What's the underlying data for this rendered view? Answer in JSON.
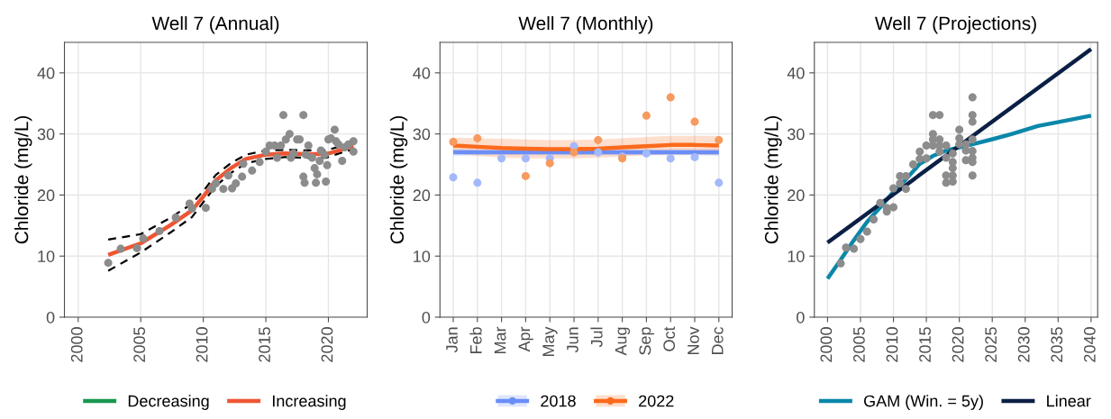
{
  "chart_data": [
    {
      "type": "line",
      "title": "Well 7 (Annual)",
      "ylabel": "Chloride (mg/L)",
      "xlim": [
        1998.9,
        2023.1
      ],
      "ylim": [
        0,
        45
      ],
      "xticks": [
        2000,
        2005,
        2010,
        2015,
        2020
      ],
      "yticks": [
        0,
        10,
        20,
        30,
        40
      ],
      "grid": true,
      "legend": "bottom",
      "series": [
        {
          "type": "scatter",
          "marker": "circle",
          "color": "#8c8c8c",
          "x": [
            2002.4,
            2003.4,
            2004.7,
            2005.2,
            2006.5,
            2007.8,
            2008.9,
            2009.1,
            2010.2,
            2010.7,
            2011.0,
            2011.6,
            2012.0,
            2012.3,
            2012.6,
            2013.1,
            2013.2,
            2013.9,
            2014.5,
            2015.0,
            2015.3,
            2015.7,
            2015.9,
            2016.2,
            2016.4,
            2016.6,
            2016.9,
            2017.0,
            2017.2,
            2017.5,
            2017.7,
            2018.0,
            2018.0,
            2018.1,
            2018.2,
            2018.4,
            2018.7,
            2018.9,
            2019.0,
            2019.1,
            2019.3,
            2019.4,
            2019.7,
            2019.8,
            2019.9,
            2020.0,
            2020.2,
            2020.5,
            2020.6,
            2020.8,
            2021.1,
            2021.3,
            2021.6,
            2022.0,
            2022.0
          ],
          "values": [
            8.9,
            11.2,
            11.3,
            12.9,
            14.1,
            16.3,
            18.6,
            17.8,
            17.9,
            21.0,
            21.9,
            21.0,
            23.2,
            21.1,
            21.9,
            23.0,
            25.1,
            24.0,
            25.4,
            27.1,
            28.1,
            28.1,
            26.1,
            28.1,
            33.1,
            29.1,
            30.0,
            26.1,
            26.8,
            29.1,
            29.1,
            33.1,
            23.0,
            22.0,
            26.6,
            28.1,
            26.1,
            24.4,
            22.0,
            23.4,
            25.6,
            27.3,
            26.6,
            22.2,
            24.9,
            29.1,
            29.3,
            30.7,
            28.8,
            28.3,
            25.6,
            27.8,
            28.3,
            28.8,
            27.1
          ]
        },
        {
          "type": "line",
          "color": "#000000",
          "line_style": "dashed",
          "x": [
            2002.4,
            2005.0,
            2007.4,
            2009.1,
            2010.1,
            2011.0,
            2012.2,
            2013.4,
            2015.0,
            2016.5,
            2018.2,
            2019.8,
            2021.0,
            2022.0
          ],
          "values": [
            12.7,
            13.6,
            16.3,
            18.6,
            20.9,
            23.3,
            25.2,
            26.6,
            27.3,
            27.4,
            27.3,
            27.3,
            28.0,
            28.7
          ]
        },
        {
          "type": "line",
          "color": "#000000",
          "line_style": "dashed",
          "x": [
            2002.4,
            2005.0,
            2007.4,
            2009.1,
            2010.1,
            2011.0,
            2012.2,
            2013.4,
            2015.0,
            2016.5,
            2018.2,
            2019.8,
            2021.0,
            2022.0
          ],
          "values": [
            7.6,
            10.6,
            13.9,
            16.4,
            19.1,
            21.5,
            23.6,
            25.2,
            25.9,
            26.2,
            26.1,
            26.1,
            26.9,
            27.5
          ]
        },
        {
          "name": "Decreasing",
          "color": "#1a9850"
        },
        {
          "name": "Increasing",
          "color": "#ef5533",
          "x": [
            2002.4,
            2005.0,
            2007.4,
            2009.1,
            2010.1,
            2011.0,
            2012.2,
            2013.4,
            2015.0,
            2016.5,
            2018.2,
            2019.8,
            2021.0,
            2022.0
          ],
          "values": [
            10.2,
            12.1,
            15.1,
            17.5,
            20.0,
            22.4,
            24.4,
            25.9,
            26.6,
            26.8,
            26.7,
            26.7,
            27.4,
            28.1
          ]
        }
      ]
    },
    {
      "type": "line",
      "title": "Well 7 (Monthly)",
      "ylabel": "Chloride (mg/L)",
      "categories": [
        "Jan",
        "Feb",
        "Mar",
        "Apr",
        "May",
        "Jun",
        "Jul",
        "Aug",
        "Sep",
        "Oct",
        "Nov",
        "Dec"
      ],
      "ylim": [
        0,
        45
      ],
      "yticks": [
        0,
        10,
        20,
        30,
        40
      ],
      "grid": true,
      "legend": "bottom",
      "series": [
        {
          "type": "scatter",
          "marker": "circle",
          "color": "#a3b9fb",
          "values": [
            22.9,
            22.0,
            26.0,
            26.0,
            26.0,
            28.0,
            27.0,
            26.3,
            26.8,
            26.0,
            26.2,
            22.0
          ]
        },
        {
          "type": "scatter",
          "marker": "circle",
          "color": "#f79a5e",
          "values": [
            28.7,
            29.3,
            null,
            23.1,
            25.2,
            27.0,
            29.0,
            26.0,
            33.0,
            36.0,
            32.0,
            29.0
          ]
        },
        {
          "name": "2018",
          "color": "#6a8ef8",
          "values": [
            27.0,
            27.0,
            27.0,
            27.0,
            27.0,
            27.0,
            27.0,
            27.0,
            27.0,
            27.0,
            27.0,
            27.0
          ],
          "lower": [
            26.4,
            26.5,
            26.5,
            26.5,
            26.5,
            26.5,
            26.5,
            26.5,
            26.5,
            26.5,
            26.5,
            26.4
          ],
          "upper": [
            27.6,
            27.5,
            27.5,
            27.5,
            27.5,
            27.5,
            27.5,
            27.5,
            27.5,
            27.5,
            27.5,
            27.6
          ]
        },
        {
          "name": "2022",
          "color": "#fb6a1c",
          "values": [
            28.1,
            27.9,
            27.7,
            27.6,
            27.5,
            27.5,
            27.6,
            27.8,
            28.0,
            28.2,
            28.2,
            28.1
          ],
          "lower": [
            26.8,
            26.4,
            26.1,
            26.0,
            26.0,
            26.0,
            26.1,
            26.3,
            26.5,
            26.6,
            26.6,
            26.6
          ],
          "upper": [
            29.4,
            29.3,
            29.2,
            29.1,
            29.0,
            29.0,
            29.1,
            29.3,
            29.5,
            29.7,
            29.7,
            29.7
          ]
        }
      ]
    },
    {
      "type": "line",
      "title": "Well 7 (Projections)",
      "ylabel": "Chloride (mg/L)",
      "xlim": [
        1998,
        2041
      ],
      "ylim": [
        0,
        45
      ],
      "xticks": [
        2000,
        2005,
        2010,
        2015,
        2020,
        2025,
        2030,
        2035,
        2040
      ],
      "yticks": [
        0,
        10,
        20,
        30,
        40
      ],
      "grid": true,
      "legend": "bottom",
      "series": [
        {
          "type": "scatter",
          "marker": "circle",
          "color": "#8c8c8c",
          "x": [
            2002.0,
            2002.8,
            2004.0,
            2005.0,
            2006.0,
            2007.0,
            2008.0,
            2009.0,
            2009.0,
            2010.0,
            2010.0,
            2011.0,
            2011.0,
            2011.9,
            2011.9,
            2013.0,
            2014.0,
            2014.0,
            2015.0,
            2015.0,
            2016.0,
            2016.0,
            2016.0,
            2016.0,
            2017.0,
            2017.0,
            2017.0,
            2017.0,
            2018.0,
            2018.0,
            2018.0,
            2018.0,
            2019.0,
            2019.0,
            2019.0,
            2019.0,
            2019.0,
            2020.0,
            2020.0,
            2020.0,
            2021.0,
            2021.0,
            2021.0,
            2022.0,
            2022.0,
            2022.0,
            2022.0,
            2022.0,
            2022.0,
            2022.0,
            2022.0
          ],
          "values": [
            8.8,
            11.4,
            11.2,
            12.8,
            14.0,
            16.0,
            18.7,
            17.3,
            17.9,
            21.1,
            18.0,
            23.1,
            21.9,
            23.1,
            21.0,
            25.0,
            27.1,
            25.9,
            28.1,
            26.0,
            33.1,
            30.0,
            29.1,
            28.1,
            33.1,
            29.1,
            28.1,
            27.1,
            28.1,
            26.1,
            23.2,
            22.0,
            26.8,
            25.4,
            24.4,
            23.2,
            22.2,
            30.7,
            29.3,
            28.3,
            28.3,
            27.3,
            25.7,
            36.0,
            33.1,
            32.0,
            29.1,
            27.2,
            26.1,
            25.4,
            23.2
          ]
        },
        {
          "name": "GAM (Win. = 5y)",
          "color": "#0a87a9",
          "x": [
            2000,
            2002,
            2004,
            2006,
            2008,
            2010,
            2012,
            2014,
            2016,
            2018,
            2020,
            2022,
            2024.9,
            2028,
            2031.9,
            2035.8,
            2040
          ],
          "values": [
            6.3,
            9.4,
            12.6,
            15.6,
            18.0,
            20.5,
            22.7,
            25.1,
            26.4,
            27.3,
            27.8,
            28.3,
            29.1,
            30.0,
            31.3,
            32.1,
            33.0
          ]
        },
        {
          "name": "Linear",
          "color": "#0b1f45",
          "x": [
            2000,
            2040
          ],
          "values": [
            12.2,
            43.9
          ]
        }
      ]
    }
  ]
}
